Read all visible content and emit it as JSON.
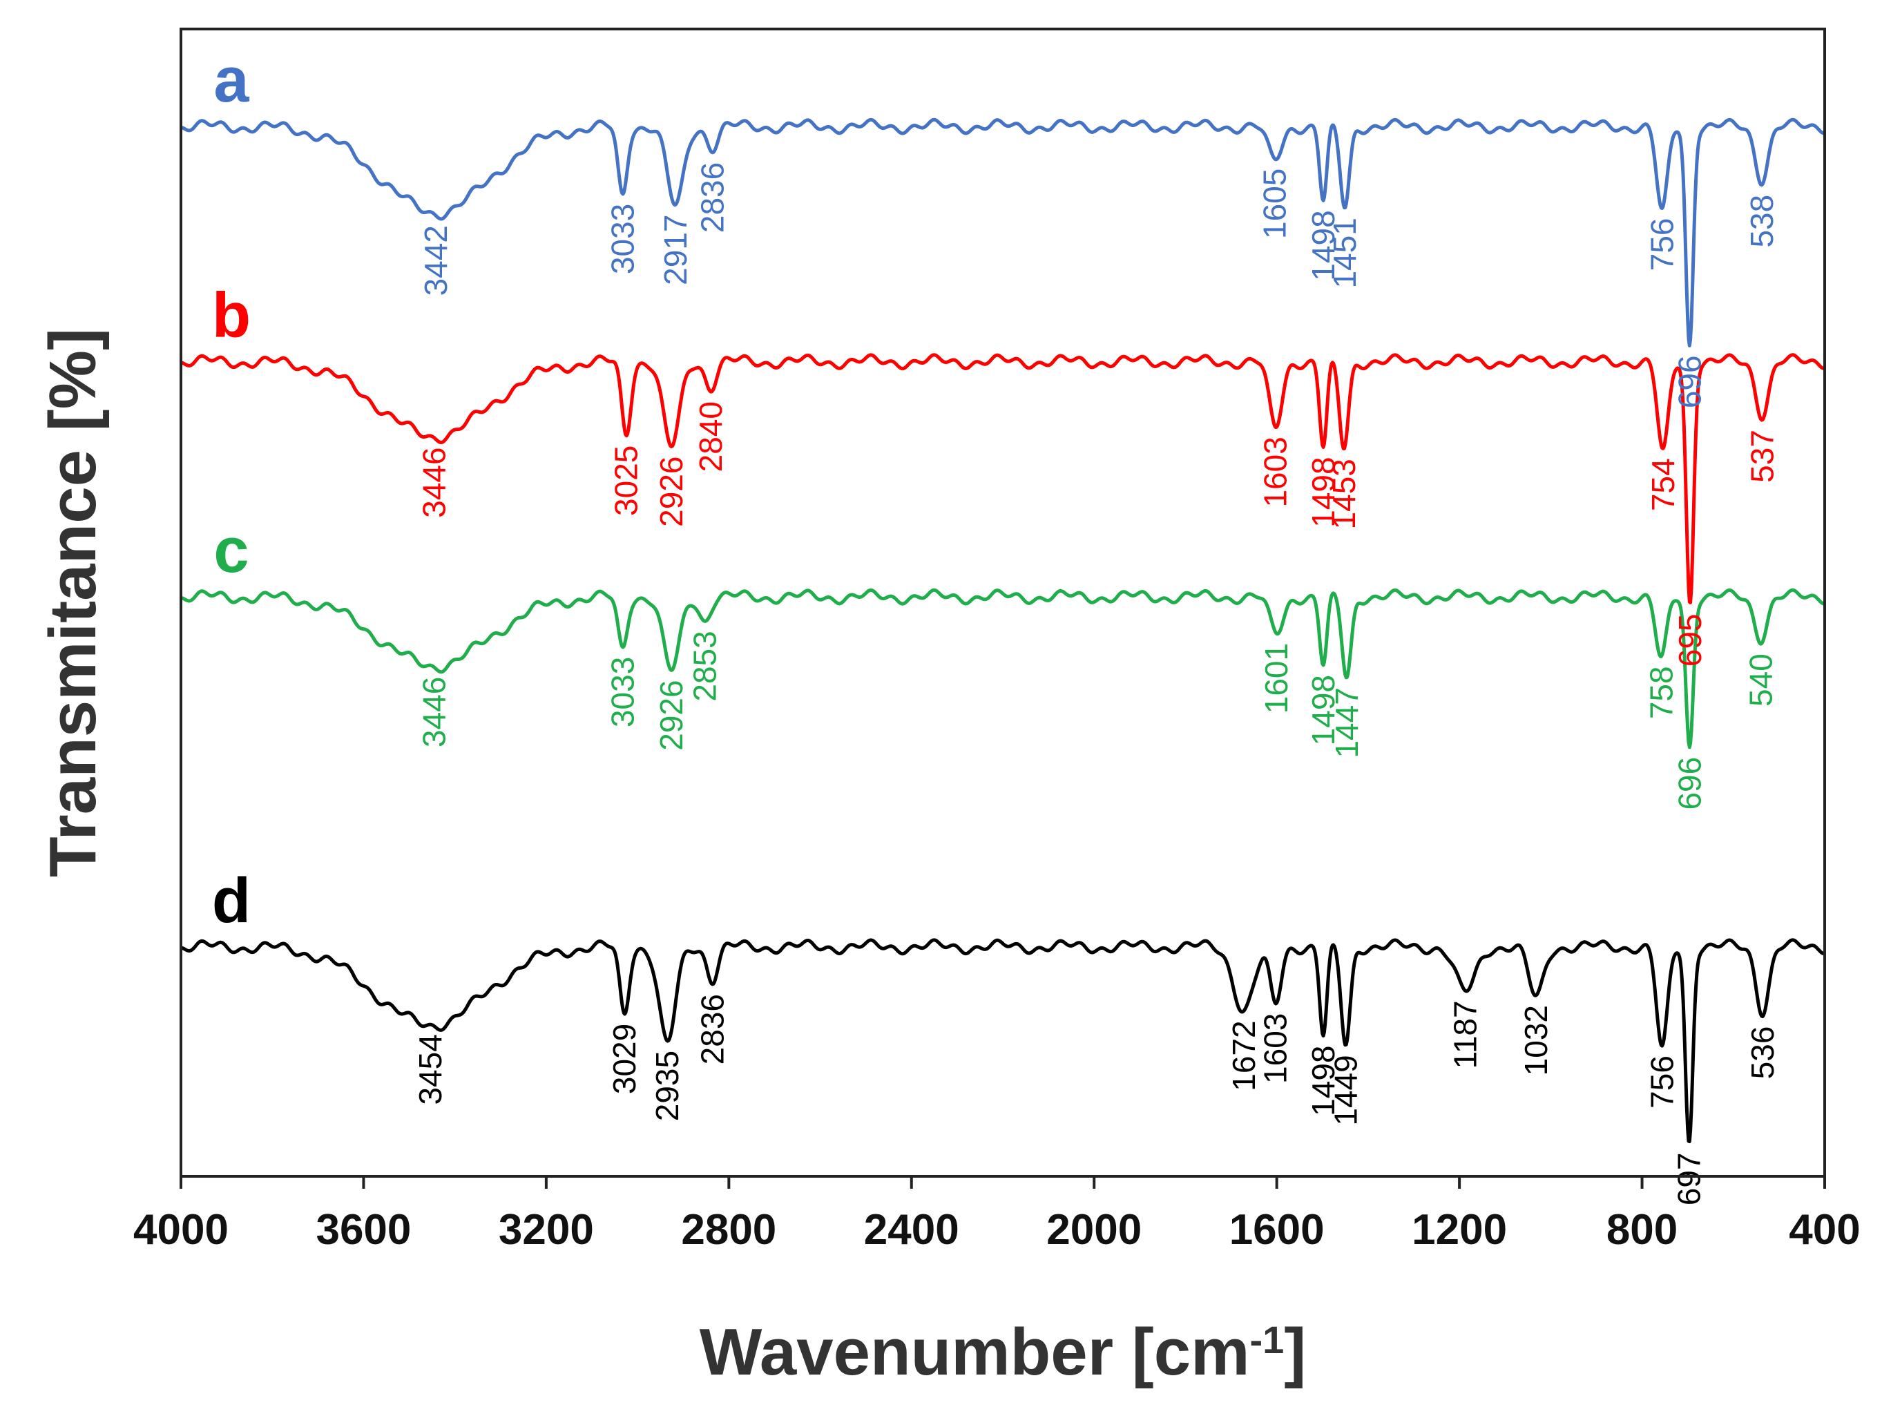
{
  "chart_data": {
    "type": "line",
    "title": "",
    "xlabel_main": "Wavenumber [cm",
    "xlabel_sup": "-1",
    "xlabel_close": "]",
    "ylabel": "Transmitance [%]",
    "xlim": [
      4000,
      400
    ],
    "x_reversed": true,
    "grid": false,
    "yticks_shown": false,
    "xticks": [
      4000,
      3600,
      3200,
      2800,
      2400,
      2000,
      1600,
      1200,
      800,
      400
    ],
    "xtick_labels": [
      "4000",
      "3600",
      "3200",
      "2800",
      "2400",
      "2000",
      "1600",
      "1200",
      "800",
      "400"
    ],
    "ylim": [
      0,
      1
    ],
    "series": [
      {
        "name": "a",
        "color": "#4472c4",
        "baseline": 0.915,
        "peaks": [
          {
            "wn": 3442,
            "label": "3442",
            "depth": 0.075,
            "width": 120
          },
          {
            "wn": 3033,
            "label": "3033",
            "depth": 0.06,
            "width": 10
          },
          {
            "wn": 2917,
            "label": "2917",
            "depth": 0.07,
            "width": 18
          },
          {
            "wn": 2836,
            "label": "2836",
            "depth": 0.018,
            "width": 12
          },
          {
            "wn": 1605,
            "label": "1605",
            "depth": 0.03,
            "width": 15
          },
          {
            "wn": 1498,
            "label": "1498",
            "depth": 0.065,
            "width": 8
          },
          {
            "wn": 1451,
            "label": "1451",
            "depth": 0.07,
            "width": 10
          },
          {
            "wn": 756,
            "label": "756",
            "depth": 0.075,
            "width": 12
          },
          {
            "wn": 696,
            "label": "696",
            "depth": 0.19,
            "width": 8
          },
          {
            "wn": 538,
            "label": "538",
            "depth": 0.045,
            "width": 14
          }
        ]
      },
      {
        "name": "b",
        "color": "#ff0000",
        "baseline": 0.71,
        "peaks": [
          {
            "wn": 3446,
            "label": "3446",
            "depth": 0.065,
            "width": 120
          },
          {
            "wn": 3025,
            "label": "3025",
            "depth": 0.062,
            "width": 10
          },
          {
            "wn": 2926,
            "label": "2926",
            "depth": 0.075,
            "width": 18
          },
          {
            "wn": 2840,
            "label": "2840",
            "depth": 0.022,
            "width": 12
          },
          {
            "wn": 1603,
            "label": "1603",
            "depth": 0.058,
            "width": 14
          },
          {
            "wn": 1498,
            "label": "1498",
            "depth": 0.075,
            "width": 8
          },
          {
            "wn": 1453,
            "label": "1453",
            "depth": 0.075,
            "width": 10
          },
          {
            "wn": 754,
            "label": "754",
            "depth": 0.08,
            "width": 12
          },
          {
            "wn": 695,
            "label": "695",
            "depth": 0.21,
            "width": 8
          },
          {
            "wn": 537,
            "label": "537",
            "depth": 0.045,
            "width": 14
          }
        ]
      },
      {
        "name": "c",
        "color": "#1fae4b",
        "baseline": 0.505,
        "peaks": [
          {
            "wn": 3446,
            "label": "3446",
            "depth": 0.06,
            "width": 120
          },
          {
            "wn": 3033,
            "label": "3033",
            "depth": 0.045,
            "width": 10
          },
          {
            "wn": 2926,
            "label": "2926",
            "depth": 0.065,
            "width": 18
          },
          {
            "wn": 2853,
            "label": "2853",
            "depth": 0.02,
            "width": 12
          },
          {
            "wn": 1601,
            "label": "1601",
            "depth": 0.032,
            "width": 15
          },
          {
            "wn": 1498,
            "label": "1498",
            "depth": 0.06,
            "width": 8
          },
          {
            "wn": 1447,
            "label": "1447",
            "depth": 0.07,
            "width": 10
          },
          {
            "wn": 758,
            "label": "758",
            "depth": 0.055,
            "width": 12
          },
          {
            "wn": 696,
            "label": "696",
            "depth": 0.13,
            "width": 8
          },
          {
            "wn": 540,
            "label": "540",
            "depth": 0.035,
            "width": 14
          }
        ]
      },
      {
        "name": "d",
        "color": "#000000",
        "baseline": 0.2,
        "peaks": [
          {
            "wn": 3454,
            "label": "3454",
            "depth": 0.068,
            "width": 120
          },
          {
            "wn": 3029,
            "label": "3029",
            "depth": 0.058,
            "width": 10
          },
          {
            "wn": 2935,
            "label": "2935",
            "depth": 0.085,
            "width": 18
          },
          {
            "wn": 2836,
            "label": "2836",
            "depth": 0.028,
            "width": 12
          },
          {
            "wn": 1672,
            "label": "1672",
            "depth": 0.055,
            "width": 22
          },
          {
            "wn": 1603,
            "label": "1603",
            "depth": 0.05,
            "width": 12
          },
          {
            "wn": 1498,
            "label": "1498",
            "depth": 0.078,
            "width": 8
          },
          {
            "wn": 1449,
            "label": "1449",
            "depth": 0.085,
            "width": 10
          },
          {
            "wn": 1187,
            "label": "1187",
            "depth": 0.04,
            "width": 22
          },
          {
            "wn": 1032,
            "label": "1032",
            "depth": 0.045,
            "width": 16
          },
          {
            "wn": 756,
            "label": "756",
            "depth": 0.09,
            "width": 12
          },
          {
            "wn": 697,
            "label": "697",
            "depth": 0.17,
            "width": 8
          },
          {
            "wn": 536,
            "label": "536",
            "depth": 0.055,
            "width": 14
          }
        ]
      }
    ]
  }
}
